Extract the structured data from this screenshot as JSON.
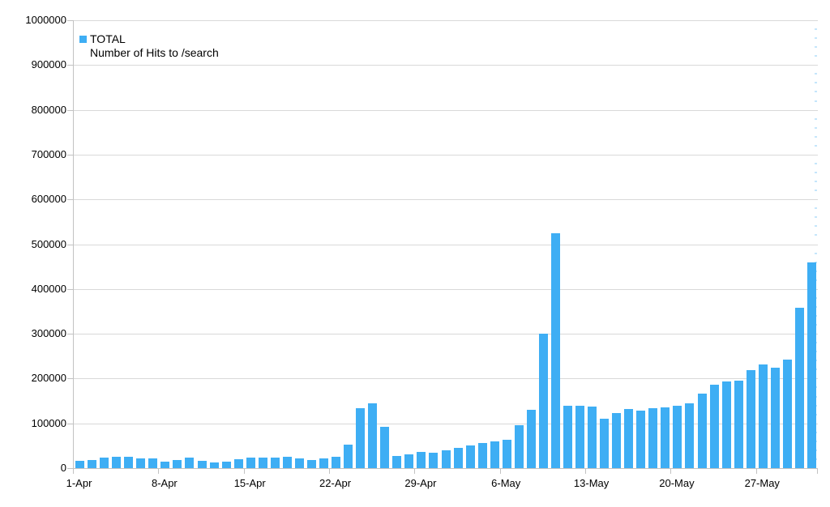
{
  "colors": {
    "bar": "#3eaef4",
    "gridline": "#d9d9d9",
    "axis_line": "#c2c2c2",
    "text": "#000000",
    "minor_tick": "#7ec8f7",
    "background": "#ffffff"
  },
  "legend": {
    "series_label": "TOTAL",
    "subtitle": "Number of Hits to /search"
  },
  "chart_data": {
    "type": "bar",
    "title": "",
    "xlabel": "",
    "ylabel": "",
    "series_name": "TOTAL",
    "annotation": "Number of Hits to /search",
    "ylim": [
      0,
      1000000
    ],
    "ytick_step": 100000,
    "grid": true,
    "legend_position": "top-left-inside",
    "xtick_interval": 7,
    "xtick_labels": [
      "1-Apr",
      "8-Apr",
      "15-Apr",
      "22-Apr",
      "29-Apr",
      "6-May",
      "13-May",
      "20-May",
      "27-May"
    ],
    "categories": [
      "1-Apr",
      "2-Apr",
      "3-Apr",
      "4-Apr",
      "5-Apr",
      "6-Apr",
      "7-Apr",
      "8-Apr",
      "9-Apr",
      "10-Apr",
      "11-Apr",
      "12-Apr",
      "13-Apr",
      "14-Apr",
      "15-Apr",
      "16-Apr",
      "17-Apr",
      "18-Apr",
      "19-Apr",
      "20-Apr",
      "21-Apr",
      "22-Apr",
      "23-Apr",
      "24-Apr",
      "25-Apr",
      "26-Apr",
      "27-Apr",
      "28-Apr",
      "29-Apr",
      "30-Apr",
      "1-May",
      "2-May",
      "3-May",
      "4-May",
      "5-May",
      "6-May",
      "7-May",
      "8-May",
      "9-May",
      "10-May",
      "11-May",
      "12-May",
      "13-May",
      "14-May",
      "15-May",
      "16-May",
      "17-May",
      "18-May",
      "19-May",
      "20-May",
      "21-May",
      "22-May",
      "23-May",
      "24-May",
      "25-May",
      "26-May",
      "27-May",
      "28-May",
      "29-May",
      "30-May",
      "31-May"
    ],
    "values": [
      16000,
      19000,
      23000,
      25000,
      25000,
      22000,
      22000,
      14000,
      19000,
      24000,
      17000,
      12000,
      15000,
      20000,
      24000,
      23000,
      24000,
      25000,
      22000,
      19000,
      22000,
      25000,
      52000,
      134000,
      145000,
      92000,
      28000,
      30000,
      37000,
      35000,
      40000,
      45000,
      51000,
      56000,
      60000,
      63000,
      95000,
      130000,
      300000,
      525000,
      139000,
      139000,
      137000,
      110000,
      123000,
      132000,
      128000,
      134000,
      136000,
      140000,
      144000,
      167000,
      187000,
      194000,
      196000,
      218000,
      231000,
      225000,
      243000,
      358000,
      459000
    ]
  }
}
